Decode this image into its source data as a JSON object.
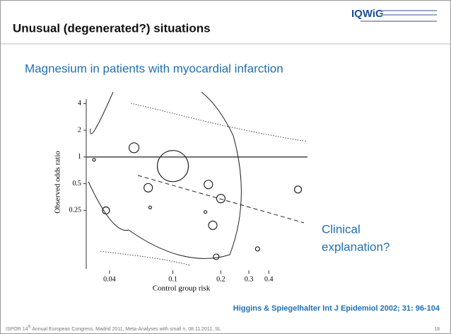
{
  "header": {
    "title": "Unusual (degenerated?) situations",
    "logo": "IQWiG"
  },
  "subtitle": "Magnesium in patients with myocardial infarction",
  "chart_data": {
    "type": "scatter",
    "xlabel": "Control group risk",
    "ylabel": "Observed odds ratio",
    "x": [
      0.1,
      0.057,
      0.032,
      0.07,
      0.072,
      0.038,
      0.167,
      0.2,
      0.178,
      0.16,
      0.61,
      0.34,
      0.187
    ],
    "values": [
      0.79,
      1.27,
      0.93,
      0.45,
      0.27,
      0.25,
      0.49,
      0.34,
      0.17,
      0.24,
      0.43,
      0.092,
      0.075
    ],
    "sizes": [
      22,
      7,
      2,
      6,
      2,
      5,
      6,
      6,
      6,
      2,
      5,
      3,
      4
    ],
    "xlim": [
      0.028,
      0.7
    ],
    "ylim": [
      0.05,
      5.4
    ],
    "xlog": true,
    "ylog": true,
    "xticks": [
      0.04,
      0.1,
      0.2,
      0.3,
      0.4
    ],
    "yticks": [
      4,
      2,
      1,
      0.5,
      0.25
    ],
    "reference": 1,
    "grid": false,
    "color": "#222222"
  },
  "annotation": "Clinical explanation?",
  "citation": "Higgins & Spiegelhalter Int J Epidemiol 2002; 31: 96-104",
  "footer": {
    "text_start": "ISPOR 14",
    "superscript": "th",
    "text_end": " Annual European Congress, Madrid 2011, Meta-Analyses with small n, 08.11.2011, SL",
    "page": "18"
  }
}
